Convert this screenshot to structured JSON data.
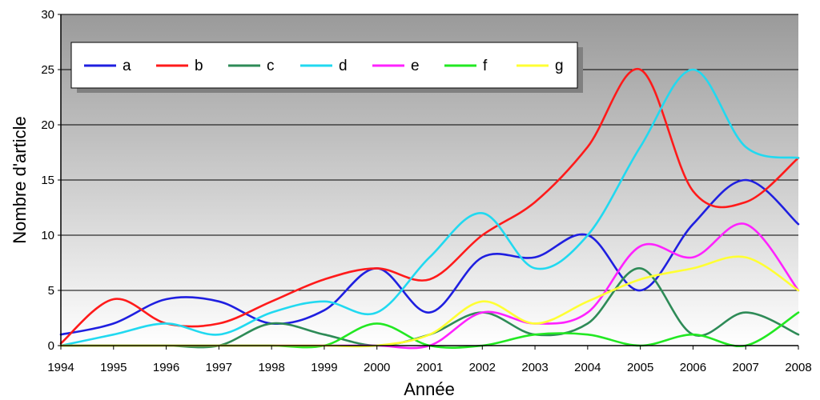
{
  "chart_data": {
    "type": "line",
    "title": "",
    "xlabel": "Année",
    "ylabel": "Nombre d'article",
    "x": [
      1994,
      1995,
      1996,
      1997,
      1998,
      1999,
      2000,
      2001,
      2002,
      2003,
      2004,
      2005,
      2006,
      2007,
      2008
    ],
    "x_tick_labels": [
      "1994",
      "1995",
      "1996",
      "1997",
      "1998",
      "1999",
      "2000",
      "2001",
      "2002",
      "2003",
      "2004",
      "2005",
      "2006",
      "2007",
      "2008"
    ],
    "xlim": [
      1994,
      2008
    ],
    "ylim": [
      0,
      30
    ],
    "y_ticks": [
      0,
      5,
      10,
      15,
      20,
      25,
      30
    ],
    "y_tick_labels": [
      "0",
      "5",
      "10",
      "15",
      "20",
      "25",
      "30"
    ],
    "grid": "horizontal",
    "legend_placement": "top-left",
    "series": [
      {
        "name": "a",
        "color": "#1f1fe0",
        "values": [
          1,
          2,
          4.2,
          4,
          2,
          3.2,
          7,
          3,
          8,
          8,
          10,
          5,
          11,
          15,
          11
        ]
      },
      {
        "name": "b",
        "color": "#ff1a1a",
        "values": [
          0.2,
          4.2,
          2,
          2,
          4,
          6,
          7,
          6,
          10,
          13,
          18,
          25,
          14,
          13,
          17
        ]
      },
      {
        "name": "c",
        "color": "#2e8b57",
        "values": [
          0,
          0,
          0,
          0,
          2,
          1,
          0,
          1,
          3,
          1,
          2,
          7,
          1,
          3,
          1
        ]
      },
      {
        "name": "d",
        "color": "#21d9f0",
        "values": [
          0,
          1,
          2,
          1,
          3,
          4,
          3,
          8,
          12,
          7,
          10,
          18,
          25,
          18,
          17
        ]
      },
      {
        "name": "e",
        "color": "#ff22ff",
        "values": [
          0,
          0,
          0,
          0,
          0,
          0,
          0,
          0,
          3,
          2,
          3,
          9,
          8,
          11,
          5
        ]
      },
      {
        "name": "f",
        "color": "#22e822",
        "values": [
          0,
          0,
          0,
          0,
          0,
          0,
          2,
          0,
          0,
          1,
          1,
          0,
          1,
          0,
          3
        ]
      },
      {
        "name": "g",
        "color": "#ffff33",
        "values": [
          0,
          0,
          0,
          0,
          0,
          0,
          0,
          1,
          4,
          2,
          4,
          6,
          7,
          8,
          5
        ]
      }
    ]
  }
}
